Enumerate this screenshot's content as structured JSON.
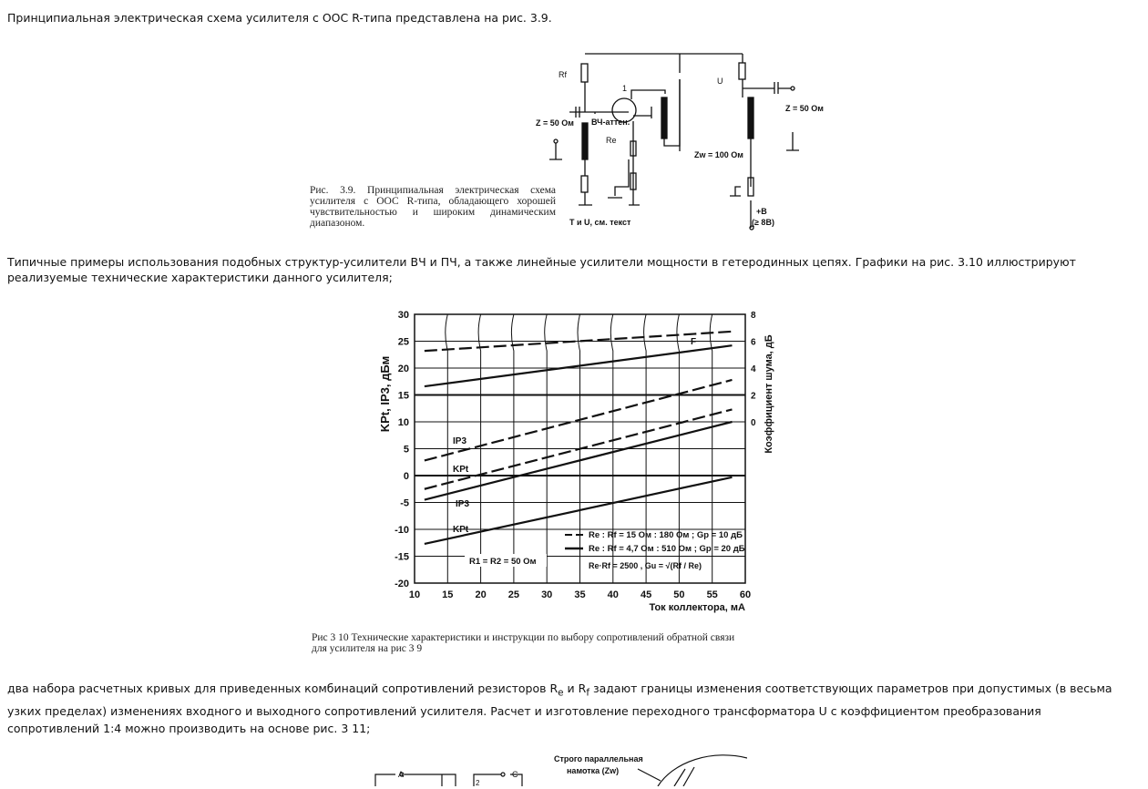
{
  "paragraphs": {
    "p1": "Принципиальная электрическая схема усилителя с ООС R-типа представлена на рис. 3.9.",
    "p2": "Типичные примеры использования подобных структур-усилители ВЧ и ПЧ, а также линейные усилители мощности в гетеродинных цепях. Графики на рис. 3.10 иллюстрируют реализуемые технические характеристики данного усилителя;",
    "p3_a": "два набора расчетных кривых для приведенных комбинаций сопротивлений резисторов R",
    "p3_sub1": "e",
    "p3_b": " и R",
    "p3_sub2": "f",
    "p3_c": " задают границы изменения соответствующих параметров при допустимых (в весьма узких пределах) изменениях входного и выходного сопротивлений усилителя. Расчет и изготовление переходного трансформатора U с коэффициентом преобразования сопротивлений 1:4 можно производить на основе рис. 3 11;"
  },
  "fig39": {
    "caption": "Рис. 3.9. Принципиальная электрическая схема усилителя с ООС R-типа, обладающего хорошей чувствительностью и широким динамическим диапазоном.",
    "labels": {
      "rf": "Rf",
      "re": "Re",
      "t": "1",
      "u": "U",
      "zin": "Z = 50 Ом",
      "zout": "Z = 50 Ом",
      "atten": "ВЧ-аттен.",
      "zw": "Zw = 100 Ом",
      "note": "T и U, см. текст",
      "vplus": "+B",
      "vrange": "(≥ 8B)"
    }
  },
  "fig310": {
    "caption_line1": "Рис 3 10 Технические характеристики и инструкции по выбору сопротивлений обратной связи",
    "caption_line2": "для усилителя на рис 3 9"
  },
  "chart_data": {
    "type": "line",
    "xlabel": "Ток коллектора, мА",
    "ylabel": "KPt, IP3, дБм",
    "y2label": "Коэффициент шума, дБ",
    "xlim": [
      10,
      60
    ],
    "ylim": [
      -20,
      30
    ],
    "y2lim": [
      -10,
      8
    ],
    "xticks": [
      "10",
      "15",
      "20",
      "25",
      "30",
      "35",
      "40",
      "45",
      "50",
      "55",
      "60"
    ],
    "yticks": [
      "30",
      "25",
      "20",
      "15",
      "10",
      "5",
      "0",
      "-5",
      "-10",
      "-15",
      "-20"
    ],
    "y2ticks": [
      "8",
      "6",
      "4",
      "2",
      "0"
    ],
    "grid": true,
    "series": [
      {
        "name": "F",
        "style": "dashed",
        "x": [
          11.5,
          58
        ],
        "y": [
          23.2,
          26.8
        ]
      },
      {
        "name": "F",
        "style": "solid",
        "x": [
          11.5,
          58
        ],
        "y": [
          16.6,
          24.2
        ]
      },
      {
        "name": "IP3",
        "style": "dashed",
        "x": [
          11.5,
          58
        ],
        "y": [
          2.8,
          17.8
        ]
      },
      {
        "name": "KPt",
        "style": "dashed",
        "x": [
          11.5,
          58
        ],
        "y": [
          -2.5,
          12.3
        ]
      },
      {
        "name": "IP3",
        "style": "solid",
        "x": [
          11.5,
          58
        ],
        "y": [
          -4.5,
          10
        ]
      },
      {
        "name": "KPt",
        "style": "solid",
        "x": [
          11.5,
          58
        ],
        "y": [
          -12.7,
          -0.3
        ]
      }
    ],
    "annotations": {
      "legend_dashed": "Re : Rf = 15 Ом : 180 Ом ; Gp = 10 дБ",
      "legend_solid": "Re : Rf = 4,7 Ом : 510 Ом ; Gp = 20 дБ",
      "formula": "Re·Rf = 2500 , Gu = √(Rf / Re)",
      "r1r2": "R1 = R2 = 50 Ом"
    }
  },
  "fig311": {
    "label_winding": "Строго параллельная",
    "label_winding2": "намотка (Zw)",
    "a": "A",
    "c": "C",
    "n2": "2"
  }
}
